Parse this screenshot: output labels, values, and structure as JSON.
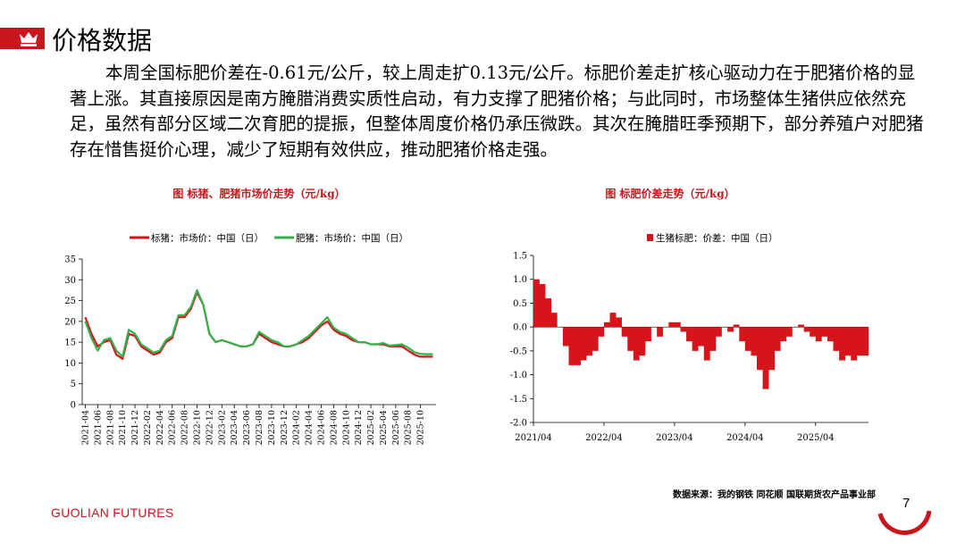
{
  "title": "价格数据",
  "paragraph": "本周全国标肥价差在-0.61元/公斤，较上周走扩0.13元/公斤。标肥价差走扩核心驱动力在于肥猪价格的显著上涨。其直接原因是南方腌腊消费实质性启动，有力支撑了肥猪价格；与此同时，市场整体生猪供应依然充足，虽然有部分区域二次育肥的提振，但整体周度价格仍承压微跌。其次在腌腊旺季预期下，部分养殖户对肥猪存在惜售挺价心理，减少了短期有效供应，推动肥猪价格走强。",
  "source": "数据来源：我的钢铁  同花顺  国联期货农产品事业部",
  "brand": "GUOLIAN FUTURES",
  "page_number": "7",
  "chart_data": [
    {
      "type": "line",
      "title": "图   标猪、肥猪市场价走势（元/kg）",
      "categories": [
        "2021-04",
        null,
        "2021-06",
        null,
        "2021-08",
        null,
        "2021-10",
        null,
        "2021-12",
        null,
        "2022-02",
        null,
        "2022-04",
        null,
        "2022-06",
        null,
        "2022-08",
        null,
        "2022-10",
        null,
        "2022-12",
        null,
        "2023-02",
        null,
        "2023-04",
        null,
        "2023-06",
        null,
        "2023-08",
        null,
        "2023-10",
        null,
        "2023-12",
        null,
        "2024-02",
        null,
        "2024-04",
        null,
        "2024-06",
        null,
        "2024-08",
        null,
        "2024-10",
        null,
        "2024-12",
        null,
        "2025-02",
        null,
        "2025-04",
        null,
        "2025-06",
        null,
        "2025-08",
        null,
        "2025-10",
        null,
        null
      ],
      "series": [
        {
          "name": "标猪：市场价：中国（日）",
          "color": "#d7141a",
          "values": [
            21,
            17,
            14,
            15,
            15.5,
            12,
            11,
            17,
            16.5,
            14,
            13,
            12,
            12.5,
            15,
            16,
            21,
            21,
            23,
            27,
            24,
            17,
            15,
            15.5,
            15,
            14.5,
            14,
            14,
            14.5,
            17,
            16,
            15,
            14.5,
            14,
            14,
            14.5,
            15,
            16,
            17.5,
            19,
            20,
            18,
            17,
            16.5,
            15.5,
            15,
            15,
            14.5,
            14.5,
            14.5,
            14,
            14,
            14,
            13,
            12,
            11.5,
            11.5,
            11.5
          ]
        },
        {
          "name": "肥猪：市场价：中国（日）",
          "color": "#2fb34a",
          "values": [
            20,
            16,
            13,
            15.5,
            16,
            13,
            11.5,
            18,
            17,
            14.5,
            13.5,
            12.5,
            13,
            15.5,
            16.5,
            21.5,
            21.5,
            23.5,
            27.5,
            24,
            17,
            15,
            15.5,
            15,
            14.5,
            14,
            14,
            14.5,
            17.5,
            16.5,
            15.5,
            15,
            14,
            14,
            14.5,
            15.5,
            16.5,
            18,
            19.5,
            21,
            18.5,
            17.5,
            17,
            16,
            15,
            15,
            14.5,
            14.5,
            14.8,
            14.2,
            14.3,
            14.5,
            13.7,
            12.6,
            12.2,
            12.1,
            12.1
          ]
        }
      ],
      "ylim": [
        0,
        35
      ],
      "yticks": [
        0,
        5,
        10,
        15,
        20,
        25,
        30,
        35
      ]
    },
    {
      "type": "bar",
      "title": "图   标肥价差走势（元/kg）",
      "categories": [
        "2021/04",
        null,
        null,
        null,
        null,
        null,
        null,
        null,
        null,
        null,
        null,
        null,
        "2022/04",
        null,
        null,
        null,
        null,
        null,
        null,
        null,
        null,
        null,
        null,
        null,
        "2023/04",
        null,
        null,
        null,
        null,
        null,
        null,
        null,
        null,
        null,
        null,
        null,
        "2024/04",
        null,
        null,
        null,
        null,
        null,
        null,
        null,
        null,
        null,
        null,
        null,
        "2025/04",
        null,
        null,
        null,
        null,
        null,
        null,
        null,
        null
      ],
      "series": [
        {
          "name": "生猪标肥：价差：中国（日）",
          "color": "#d7141a",
          "values": [
            1.0,
            0.9,
            0.6,
            0.3,
            0.0,
            -0.4,
            -0.8,
            -0.8,
            -0.7,
            -0.6,
            -0.5,
            -0.2,
            0.1,
            0.3,
            0.2,
            -0.2,
            -0.5,
            -0.7,
            -0.6,
            -0.3,
            0.0,
            -0.2,
            0.0,
            0.1,
            0.1,
            -0.1,
            -0.3,
            -0.5,
            -0.4,
            -0.7,
            -0.5,
            -0.2,
            0.0,
            -0.1,
            0.05,
            -0.3,
            -0.5,
            -0.6,
            -0.9,
            -1.3,
            -0.9,
            -0.5,
            -0.3,
            -0.2,
            0.0,
            0.05,
            -0.1,
            -0.2,
            -0.3,
            -0.2,
            -0.3,
            -0.5,
            -0.7,
            -0.6,
            -0.7,
            -0.6,
            -0.6
          ]
        }
      ],
      "ylim": [
        -2,
        1.5
      ],
      "yticks": [
        {
          "value": -2,
          "label": "-2.0"
        },
        -1.5,
        {
          "value": -1,
          "label": "-1.0"
        },
        -0.5,
        {
          "value": 0,
          "label": "0.0"
        },
        0.5,
        {
          "value": 1,
          "label": "1.0"
        },
        1.5
      ]
    }
  ]
}
